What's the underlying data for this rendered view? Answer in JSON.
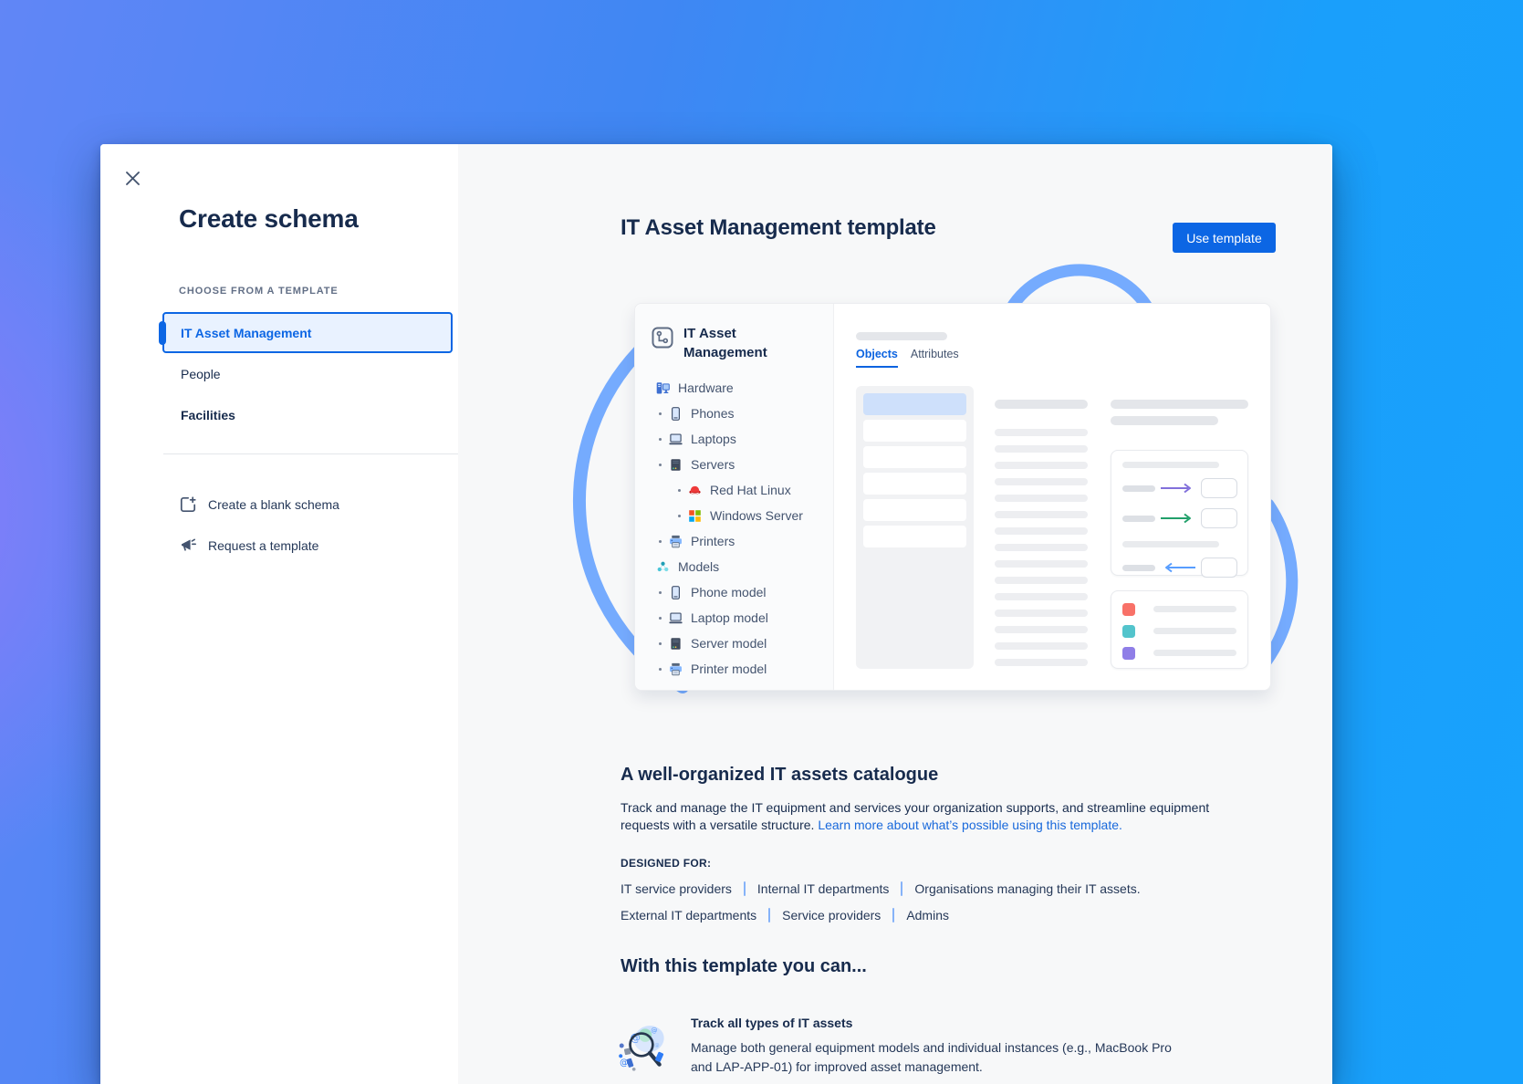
{
  "window": {
    "close_icon": "close-icon"
  },
  "sidebar": {
    "title": "Create schema",
    "section_label": "CHOOSE FROM A TEMPLATE",
    "templates": [
      {
        "label": "IT Asset Management",
        "selected": true
      },
      {
        "label": "People",
        "selected": false
      },
      {
        "label": "Facilities",
        "selected": false
      }
    ],
    "actions": [
      {
        "label": "Create a blank schema",
        "icon": "blank-schema-icon"
      },
      {
        "label": "Request a template",
        "icon": "megaphone-icon"
      }
    ]
  },
  "main": {
    "header": {
      "title": "IT Asset Management template",
      "use_template_label": "Use template"
    },
    "preview": {
      "schema_icon": "schema-icon",
      "schema_title": "IT Asset Management",
      "tabs": [
        {
          "label": "Objects",
          "active": true
        },
        {
          "label": "Attributes",
          "active": false
        }
      ],
      "tree": [
        {
          "label": "Hardware",
          "icon": "hardware-icon",
          "level": 0
        },
        {
          "label": "Phones",
          "icon": "phone-icon",
          "level": 1
        },
        {
          "label": "Laptops",
          "icon": "laptop-icon",
          "level": 1
        },
        {
          "label": "Servers",
          "icon": "server-icon",
          "level": 1
        },
        {
          "label": "Red Hat Linux",
          "icon": "redhat-icon",
          "level": 2
        },
        {
          "label": "Windows Server",
          "icon": "windows-icon",
          "level": 2
        },
        {
          "label": "Printers",
          "icon": "printer-icon",
          "level": 1
        },
        {
          "label": "Models",
          "icon": "models-icon",
          "level": 0
        },
        {
          "label": "Phone model",
          "icon": "phone-icon",
          "level": 1
        },
        {
          "label": "Laptop model",
          "icon": "laptop-icon",
          "level": 1
        },
        {
          "label": "Server model",
          "icon": "server-icon",
          "level": 1
        },
        {
          "label": "Printer model",
          "icon": "printer-icon",
          "level": 1
        }
      ]
    },
    "about": {
      "heading": "A well-organized IT assets catalogue",
      "body": "Track and manage the IT equipment and services your organization supports, and streamline equipment requests with a versatile structure.",
      "link": "Learn more about what’s possible using this template."
    },
    "designed_for": {
      "label": "DESIGNED FOR:",
      "rows": [
        [
          "IT service providers",
          "Internal IT departments",
          "Organisations managing their IT assets."
        ],
        [
          "External IT departments",
          "Service providers",
          "Admins"
        ]
      ]
    },
    "capabilities": {
      "heading": "With this template you can...",
      "feature": {
        "icon": "asset-search-illustration",
        "title": "Track all types of IT assets",
        "body": "Manage both general equipment models and individual instances (e.g., MacBook Pro and LAP-APP-01) for improved asset management."
      }
    }
  },
  "colors": {
    "accent_blue": "#0C66E4",
    "selected_item_bg": "#E9F2FF",
    "link_blue": "#1868DB",
    "arc_blue": "#5E9EFF",
    "legend": [
      "#F87168",
      "#53C4CC",
      "#8F7EE7"
    ],
    "arrows": [
      "#8270DB",
      "#22A06B",
      "#579DFF"
    ]
  }
}
